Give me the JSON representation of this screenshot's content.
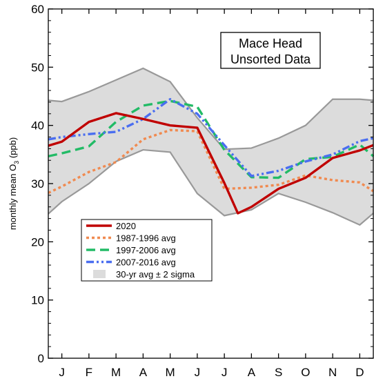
{
  "chart_data": {
    "type": "line",
    "title_lines": [
      "Mace Head",
      "Unsorted Data"
    ],
    "ylabel_main": "monthly mean  O",
    "ylabel_sub": "3",
    "ylabel_unit": " (ppb)",
    "xlabel": "",
    "ylim": [
      0,
      60
    ],
    "yticks": [
      0,
      10,
      20,
      30,
      40,
      50,
      60
    ],
    "categories": [
      "J",
      "F",
      "M",
      "A",
      "M",
      "J",
      "J",
      "A",
      "S",
      "O",
      "N",
      "D"
    ],
    "x_tick_positions": [
      1,
      2,
      3,
      4,
      5,
      6,
      7,
      8,
      9,
      10,
      11,
      12
    ],
    "grid": false,
    "legend_position": "lower-left",
    "band": {
      "name": "30-yr avg ± 2 sigma",
      "color": "#dcdcdc",
      "edge_color": "#999999",
      "x": [
        0.5,
        1,
        2,
        3,
        4,
        5,
        6,
        7,
        8,
        9,
        10,
        11,
        12,
        12.5
      ],
      "upper": [
        44.3,
        44.1,
        45.8,
        47.8,
        49.8,
        47.5,
        41.3,
        35.9,
        36.1,
        37.8,
        40.0,
        44.5,
        44.5,
        44.3
      ],
      "lower": [
        24.8,
        26.9,
        30.0,
        33.8,
        35.8,
        35.4,
        28.3,
        24.5,
        25.5,
        28.3,
        26.8,
        25.0,
        22.9,
        24.9
      ]
    },
    "series": [
      {
        "name": "2020",
        "color": "#c00000",
        "dash": "",
        "width": 3.4,
        "x": [
          0.5,
          1,
          2,
          3,
          4,
          5,
          6,
          7,
          7.5,
          8,
          9,
          10,
          11,
          12,
          12.5
        ],
        "values": [
          36.5,
          37.2,
          40.6,
          42.1,
          41.1,
          40.0,
          39.6,
          30.1,
          24.9,
          26.0,
          29.1,
          31.0,
          34.4,
          35.7,
          36.6
        ]
      },
      {
        "name": "1987-1996 avg",
        "color": "#f08a50",
        "dash": "4,4",
        "width": 3.4,
        "x": [
          0.5,
          1,
          2,
          3,
          4,
          5,
          6,
          7,
          8,
          9,
          10,
          11,
          12,
          12.5
        ],
        "values": [
          28.4,
          29.5,
          32.0,
          33.7,
          37.6,
          39.2,
          39.0,
          29.1,
          29.3,
          29.8,
          31.4,
          30.6,
          30.2,
          28.7
        ]
      },
      {
        "name": "1997-2006 avg",
        "color": "#22bb66",
        "dash": "13,7",
        "width": 3.4,
        "x": [
          0.5,
          1,
          2,
          3,
          4,
          5,
          6,
          7,
          8,
          9,
          10,
          11,
          12,
          12.5
        ],
        "values": [
          34.7,
          35.2,
          36.4,
          40.6,
          43.4,
          44.2,
          43.2,
          35.8,
          31.1,
          31.0,
          34.2,
          34.6,
          36.7,
          34.7
        ]
      },
      {
        "name": "2007-2016 avg",
        "color": "#4a6ef0",
        "dash": "11,4,3,4,3,4",
        "width": 3.4,
        "x": [
          0.5,
          1,
          2,
          3,
          4,
          5,
          6,
          7,
          8,
          9,
          10,
          11,
          12,
          12.5
        ],
        "values": [
          37.6,
          38.0,
          38.5,
          38.9,
          41.1,
          44.5,
          42.0,
          36.6,
          31.3,
          32.2,
          33.8,
          35.0,
          37.3,
          37.8
        ]
      }
    ],
    "legend_order": [
      "2020",
      "1987-1996 avg",
      "1997-2006 avg",
      "2007-2016 avg",
      "30-yr avg ± 2 sigma"
    ]
  }
}
